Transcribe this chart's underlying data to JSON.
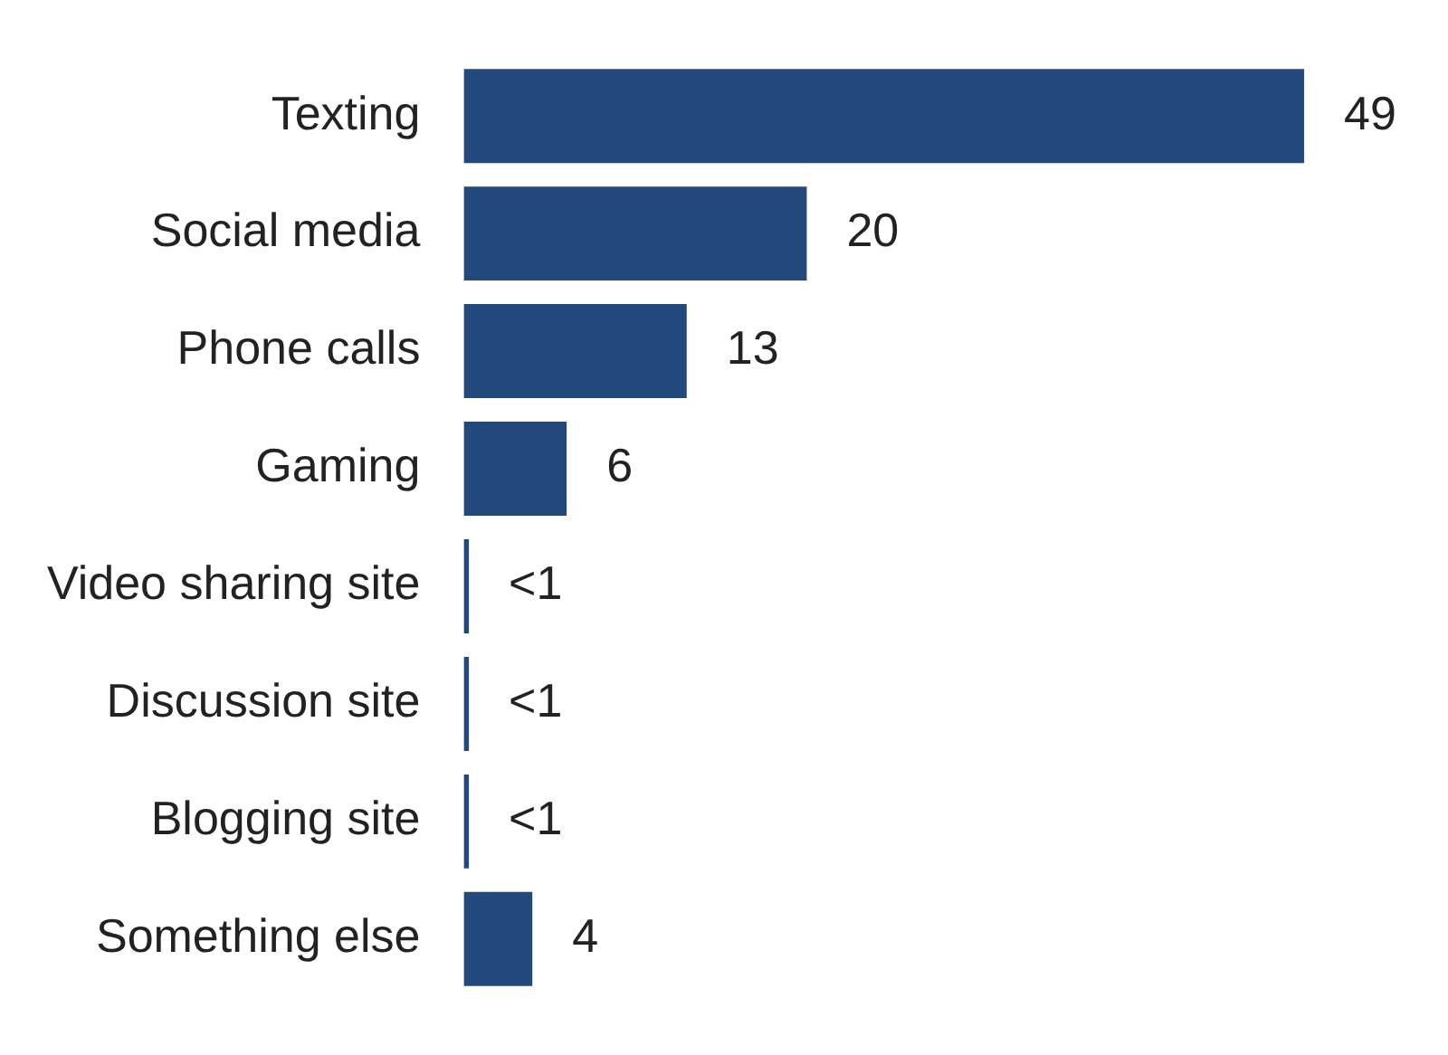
{
  "chart_data": {
    "type": "bar",
    "orientation": "horizontal",
    "categories": [
      "Texting",
      "Social media",
      "Phone calls",
      "Gaming",
      "Video sharing site",
      "Discussion site",
      "Blogging site",
      "Something else"
    ],
    "values": [
      49,
      20,
      13,
      6,
      0.3,
      0.3,
      0.3,
      4
    ],
    "value_labels": [
      "49",
      "20",
      "13",
      "6",
      "<1",
      "<1",
      "<1",
      "4"
    ],
    "color": "#23497c"
  }
}
